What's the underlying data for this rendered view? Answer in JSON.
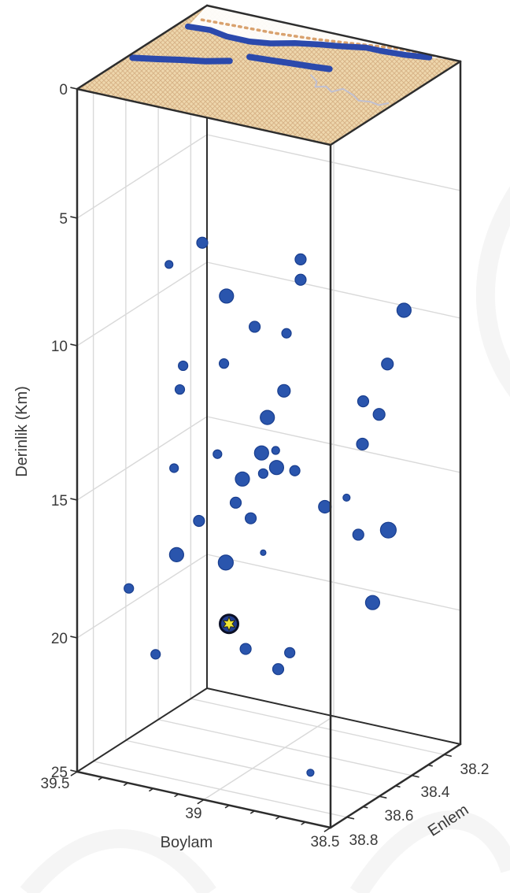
{
  "figure": {
    "background": "#ffffff",
    "description": "3D earthquake hypocenter depth plot with surface map overlay"
  },
  "chart_data": {
    "type": "scatter",
    "projection": "3d-box",
    "title": "",
    "axes": {
      "z": {
        "label": "Derinlik (Km)",
        "ticks": [
          0,
          5,
          10,
          15,
          20,
          25
        ],
        "range": [
          0,
          25
        ],
        "direction": "down"
      },
      "x": {
        "label": "Boylam",
        "ticks": [
          39.5,
          39,
          38.5
        ],
        "range": [
          39.5,
          38.5
        ],
        "minor_step": 0.1
      },
      "y": {
        "label": "Enlem",
        "ticks": [
          38.8,
          38.6,
          38.4,
          38.2
        ],
        "range": [
          38.9,
          38.1
        ],
        "minor_step": 0.1
      }
    },
    "grid": true,
    "points": [
      {
        "lon": 39.16,
        "lat": 38.66,
        "depth": 6.2,
        "r": 7
      },
      {
        "lon": 39.24,
        "lat": 38.74,
        "depth": 6.9,
        "r": 5
      },
      {
        "lon": 38.9,
        "lat": 38.46,
        "depth": 7.1,
        "r": 7
      },
      {
        "lon": 38.9,
        "lat": 38.46,
        "depth": 7.9,
        "r": 7
      },
      {
        "lon": 39.09,
        "lat": 38.62,
        "depth": 8.3,
        "r": 9
      },
      {
        "lon": 38.62,
        "lat": 38.26,
        "depth": 9.3,
        "r": 9
      },
      {
        "lon": 39.03,
        "lat": 38.54,
        "depth": 9.7,
        "r": 7
      },
      {
        "lon": 38.93,
        "lat": 38.5,
        "depth": 9.9,
        "r": 6
      },
      {
        "lon": 39.21,
        "lat": 38.7,
        "depth": 10.8,
        "r": 6
      },
      {
        "lon": 39.1,
        "lat": 38.62,
        "depth": 10.8,
        "r": 6
      },
      {
        "lon": 38.66,
        "lat": 38.3,
        "depth": 11.1,
        "r": 7.5
      },
      {
        "lon": 39.21,
        "lat": 38.72,
        "depth": 11.5,
        "r": 6
      },
      {
        "lon": 38.94,
        "lat": 38.5,
        "depth": 11.8,
        "r": 8
      },
      {
        "lon": 38.73,
        "lat": 38.34,
        "depth": 12.3,
        "r": 7
      },
      {
        "lon": 38.68,
        "lat": 38.32,
        "depth": 12.7,
        "r": 7.5
      },
      {
        "lon": 38.98,
        "lat": 38.54,
        "depth": 12.6,
        "r": 9
      },
      {
        "lon": 38.72,
        "lat": 38.36,
        "depth": 13.6,
        "r": 7.5
      },
      {
        "lon": 39.1,
        "lat": 38.66,
        "depth": 13.6,
        "r": 5.5
      },
      {
        "lon": 38.99,
        "lat": 38.56,
        "depth": 13.7,
        "r": 9
      },
      {
        "lon": 38.96,
        "lat": 38.52,
        "depth": 13.7,
        "r": 5
      },
      {
        "lon": 39.22,
        "lat": 38.74,
        "depth": 14.0,
        "r": 5.5
      },
      {
        "lon": 38.95,
        "lat": 38.53,
        "depth": 14.2,
        "r": 9
      },
      {
        "lon": 38.91,
        "lat": 38.48,
        "depth": 14.4,
        "r": 6.5
      },
      {
        "lon": 39.04,
        "lat": 38.6,
        "depth": 14.5,
        "r": 9
      },
      {
        "lon": 38.99,
        "lat": 38.55,
        "depth": 14.4,
        "r": 6
      },
      {
        "lon": 39.06,
        "lat": 38.61,
        "depth": 15.3,
        "r": 7
      },
      {
        "lon": 38.77,
        "lat": 38.38,
        "depth": 15.4,
        "r": 4.5
      },
      {
        "lon": 38.83,
        "lat": 38.42,
        "depth": 15.7,
        "r": 8
      },
      {
        "lon": 39.02,
        "lat": 38.58,
        "depth": 15.9,
        "r": 7
      },
      {
        "lon": 39.16,
        "lat": 38.68,
        "depth": 15.9,
        "r": 7
      },
      {
        "lon": 38.73,
        "lat": 38.37,
        "depth": 16.7,
        "r": 7
      },
      {
        "lon": 38.65,
        "lat": 38.31,
        "depth": 16.6,
        "r": 10
      },
      {
        "lon": 39.21,
        "lat": 38.74,
        "depth": 17.0,
        "r": 9
      },
      {
        "lon": 39.08,
        "lat": 38.64,
        "depth": 17.4,
        "r": 9.5
      },
      {
        "lon": 38.99,
        "lat": 38.55,
        "depth": 17.2,
        "r": 3.5
      },
      {
        "lon": 39.36,
        "lat": 38.8,
        "depth": 18.3,
        "r": 6
      },
      {
        "lon": 38.68,
        "lat": 38.36,
        "depth": 19.1,
        "r": 9
      },
      {
        "lon": 39.04,
        "lat": 38.58,
        "depth": 20.7,
        "r": 7
      },
      {
        "lon": 39.28,
        "lat": 38.76,
        "depth": 20.7,
        "r": 6
      },
      {
        "lon": 38.93,
        "lat": 38.48,
        "depth": 21.0,
        "r": 6.5
      },
      {
        "lon": 38.95,
        "lat": 38.52,
        "depth": 21.5,
        "r": 7
      },
      {
        "lon": 38.81,
        "lat": 38.54,
        "depth": 25.0,
        "r": 4.5
      }
    ],
    "mainshock": {
      "lon": 39.08,
      "lat": 38.62,
      "depth": 19.7,
      "marker": "star",
      "r": 11.5
    },
    "map_overlay": {
      "features": [
        {
          "name": "river-north",
          "type": "river",
          "coords": [
            [
              39.46,
              38.28
            ],
            [
              39.38,
              38.27
            ],
            [
              39.3,
              38.29
            ],
            [
              39.21,
              38.29
            ],
            [
              39.14,
              38.27
            ],
            [
              39.07,
              38.23
            ],
            [
              38.99,
              38.2
            ],
            [
              38.92,
              38.18
            ],
            [
              38.84,
              38.15
            ],
            [
              38.78,
              38.15
            ],
            [
              38.69,
              38.14
            ],
            [
              38.61,
              38.12
            ]
          ]
        },
        {
          "name": "river-south-west",
          "type": "river",
          "coords": [
            [
              39.48,
              38.59
            ],
            [
              39.4,
              38.56
            ],
            [
              39.33,
              38.53
            ],
            [
              39.25,
              38.5
            ],
            [
              39.18,
              38.46
            ]
          ]
        },
        {
          "name": "river-south-east",
          "type": "river",
          "coords": [
            [
              39.14,
              38.4
            ],
            [
              39.06,
              38.39
            ],
            [
              38.99,
              38.38
            ],
            [
              38.91,
              38.37
            ],
            [
              38.85,
              38.36
            ]
          ]
        },
        {
          "name": "stream",
          "type": "stream",
          "coords": [
            [
              38.88,
              38.43
            ],
            [
              38.83,
              38.47
            ],
            [
              38.81,
              38.51
            ],
            [
              38.78,
              38.49
            ],
            [
              38.74,
              38.52
            ],
            [
              38.72,
              38.48
            ],
            [
              38.66,
              38.51
            ],
            [
              38.62,
              38.54
            ],
            [
              38.58,
              38.53
            ],
            [
              38.54,
              38.54
            ],
            [
              38.52,
              38.51
            ]
          ]
        },
        {
          "name": "map-boundary-dashed",
          "type": "dashed",
          "coords": [
            [
              39.45,
              38.21
            ],
            [
              39.32,
              38.2
            ],
            [
              39.17,
              38.19
            ],
            [
              39.03,
              38.17
            ],
            [
              38.89,
              38.14
            ],
            [
              38.76,
              38.11
            ],
            [
              38.62,
              38.1
            ],
            [
              38.54,
              38.1
            ]
          ]
        }
      ]
    },
    "colors": {
      "point": "#2a55ad",
      "point_edge": "#193e8e",
      "river": "#2b49ac",
      "stream": "#c0c0d2",
      "dashed": "#d9a26e",
      "surface": "#eed7ad",
      "surface_hatch": "#d8b488",
      "box_edge": "#2d2d2d",
      "grid": "#d9d9d9",
      "text": "#3a3a3a",
      "star_fill": "#f0e636",
      "star_ring": "#223f8e",
      "star_ring_edge": "#0b1026"
    }
  }
}
